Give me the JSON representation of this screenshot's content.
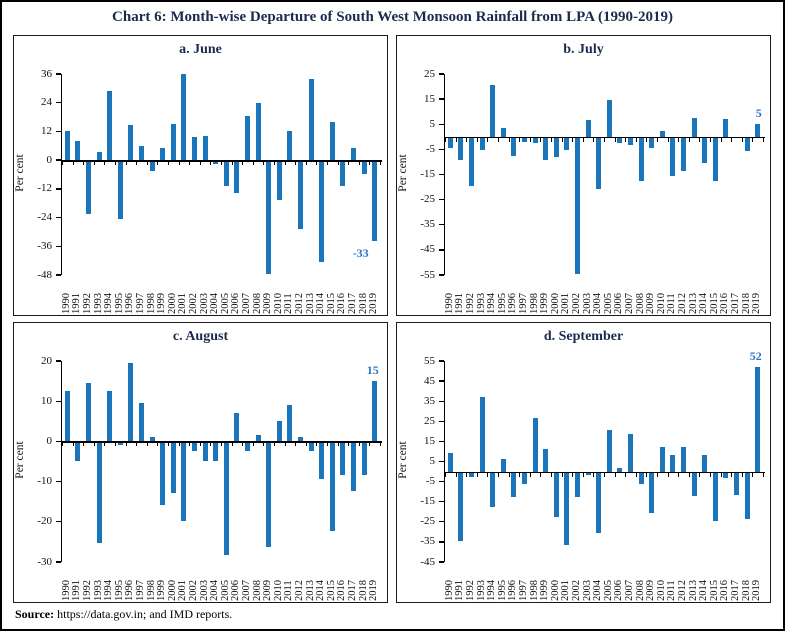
{
  "page": {
    "title": "Chart 6: Month-wise Departure of South West Monsoon Rainfall from LPA (1990-2019)",
    "source_label": "Source:",
    "source_text": " https://data.gov.in; and IMD reports."
  },
  "colors": {
    "bar": "#1b75bb",
    "annotation": "#2b76c2",
    "title": "#1b2b4d",
    "axis": "#000000"
  },
  "chart_data": [
    {
      "type": "bar",
      "title": "a. June",
      "ylabel": "Per cent",
      "ylim": [
        -48,
        36
      ],
      "yticks": [
        36,
        24,
        12,
        0,
        -12,
        -24,
        -36,
        -48
      ],
      "categories": [
        "1990",
        "1991",
        "1992",
        "1993",
        "1994",
        "1995",
        "1996",
        "1997",
        "1998",
        "1999",
        "2000",
        "2001",
        "2002",
        "2003",
        "2004",
        "2005",
        "2006",
        "2007",
        "2008",
        "2009",
        "2010",
        "2011",
        "2012",
        "2013",
        "2014",
        "2015",
        "2016",
        "2017",
        "2018",
        "2019"
      ],
      "values": [
        12,
        8,
        -22,
        3.5,
        29,
        -24,
        14.5,
        6,
        -4,
        5,
        15,
        36,
        9.5,
        10,
        -1,
        -10,
        -13,
        18.5,
        24,
        -47,
        -16,
        12,
        -28,
        34,
        -42,
        16,
        -10,
        5,
        -5,
        -33
      ],
      "annotation": {
        "text": "-33",
        "position": "below"
      }
    },
    {
      "type": "bar",
      "title": "b. July",
      "ylabel": "Per cent",
      "ylim": [
        -55,
        25
      ],
      "yticks": [
        25,
        15,
        5,
        -5,
        -15,
        -25,
        -35,
        -45,
        -55
      ],
      "categories": [
        "1990",
        "1991",
        "1992",
        "1993",
        "1994",
        "1995",
        "1996",
        "1997",
        "1998",
        "1999",
        "2000",
        "2001",
        "2002",
        "2003",
        "2004",
        "2005",
        "2006",
        "2007",
        "2008",
        "2009",
        "2010",
        "2011",
        "2012",
        "2013",
        "2014",
        "2015",
        "2016",
        "2017",
        "2018",
        "2019"
      ],
      "values": [
        -4,
        -8.5,
        -19,
        -4.5,
        20.5,
        3.5,
        -7,
        -1.5,
        -2,
        -8.5,
        -7.5,
        -4.5,
        -54,
        6.5,
        -20,
        14.5,
        -2,
        -2.5,
        -17,
        -4,
        2.5,
        -15,
        -13,
        7.5,
        -10,
        -17,
        7,
        0,
        -5,
        5
      ],
      "annotation": {
        "text": "5",
        "position": "above"
      }
    },
    {
      "type": "bar",
      "title": "c. August",
      "ylabel": "Per cent",
      "ylim": [
        -30,
        20
      ],
      "yticks": [
        20,
        10,
        0,
        -10,
        -20,
        -30
      ],
      "categories": [
        "1990",
        "1991",
        "1992",
        "1993",
        "1994",
        "1995",
        "1996",
        "1997",
        "1998",
        "1999",
        "2000",
        "2001",
        "2002",
        "2003",
        "2004",
        "2005",
        "2006",
        "2007",
        "2008",
        "2009",
        "2010",
        "2011",
        "2012",
        "2013",
        "2014",
        "2015",
        "2016",
        "2017",
        "2018",
        "2019"
      ],
      "values": [
        12.5,
        -4.5,
        14.5,
        -25,
        12.5,
        -0.5,
        19.5,
        9.5,
        1,
        -15.5,
        -12.5,
        -19.5,
        -2,
        -4.5,
        -4.5,
        -28,
        7,
        -2,
        1.5,
        -26,
        5,
        9,
        1,
        -2,
        -9,
        -22,
        -8,
        -12,
        -8,
        15
      ],
      "annotation": {
        "text": "15",
        "position": "above"
      }
    },
    {
      "type": "bar",
      "title": "d. September",
      "ylabel": "Per cent",
      "ylim": [
        -45,
        55
      ],
      "yticks": [
        55,
        45,
        35,
        25,
        15,
        5,
        -5,
        -15,
        -25,
        -35,
        -45
      ],
      "categories": [
        "1990",
        "1991",
        "1992",
        "1993",
        "1994",
        "1995",
        "1996",
        "1997",
        "1998",
        "1999",
        "2000",
        "2001",
        "2002",
        "2003",
        "2004",
        "2005",
        "2006",
        "2007",
        "2008",
        "2009",
        "2010",
        "2011",
        "2012",
        "2013",
        "2014",
        "2015",
        "2016",
        "2017",
        "2018",
        "2019"
      ],
      "values": [
        9,
        -34,
        -2,
        37,
        -17,
        6,
        -12,
        -5.5,
        26.5,
        11,
        -22,
        -36,
        -12,
        -1,
        -30,
        20.5,
        2,
        18.5,
        -5.5,
        -20,
        12,
        8,
        12,
        -11.5,
        8,
        -24,
        -2.5,
        -11,
        -23,
        52
      ],
      "annotation": {
        "text": "52",
        "position": "above"
      }
    }
  ]
}
